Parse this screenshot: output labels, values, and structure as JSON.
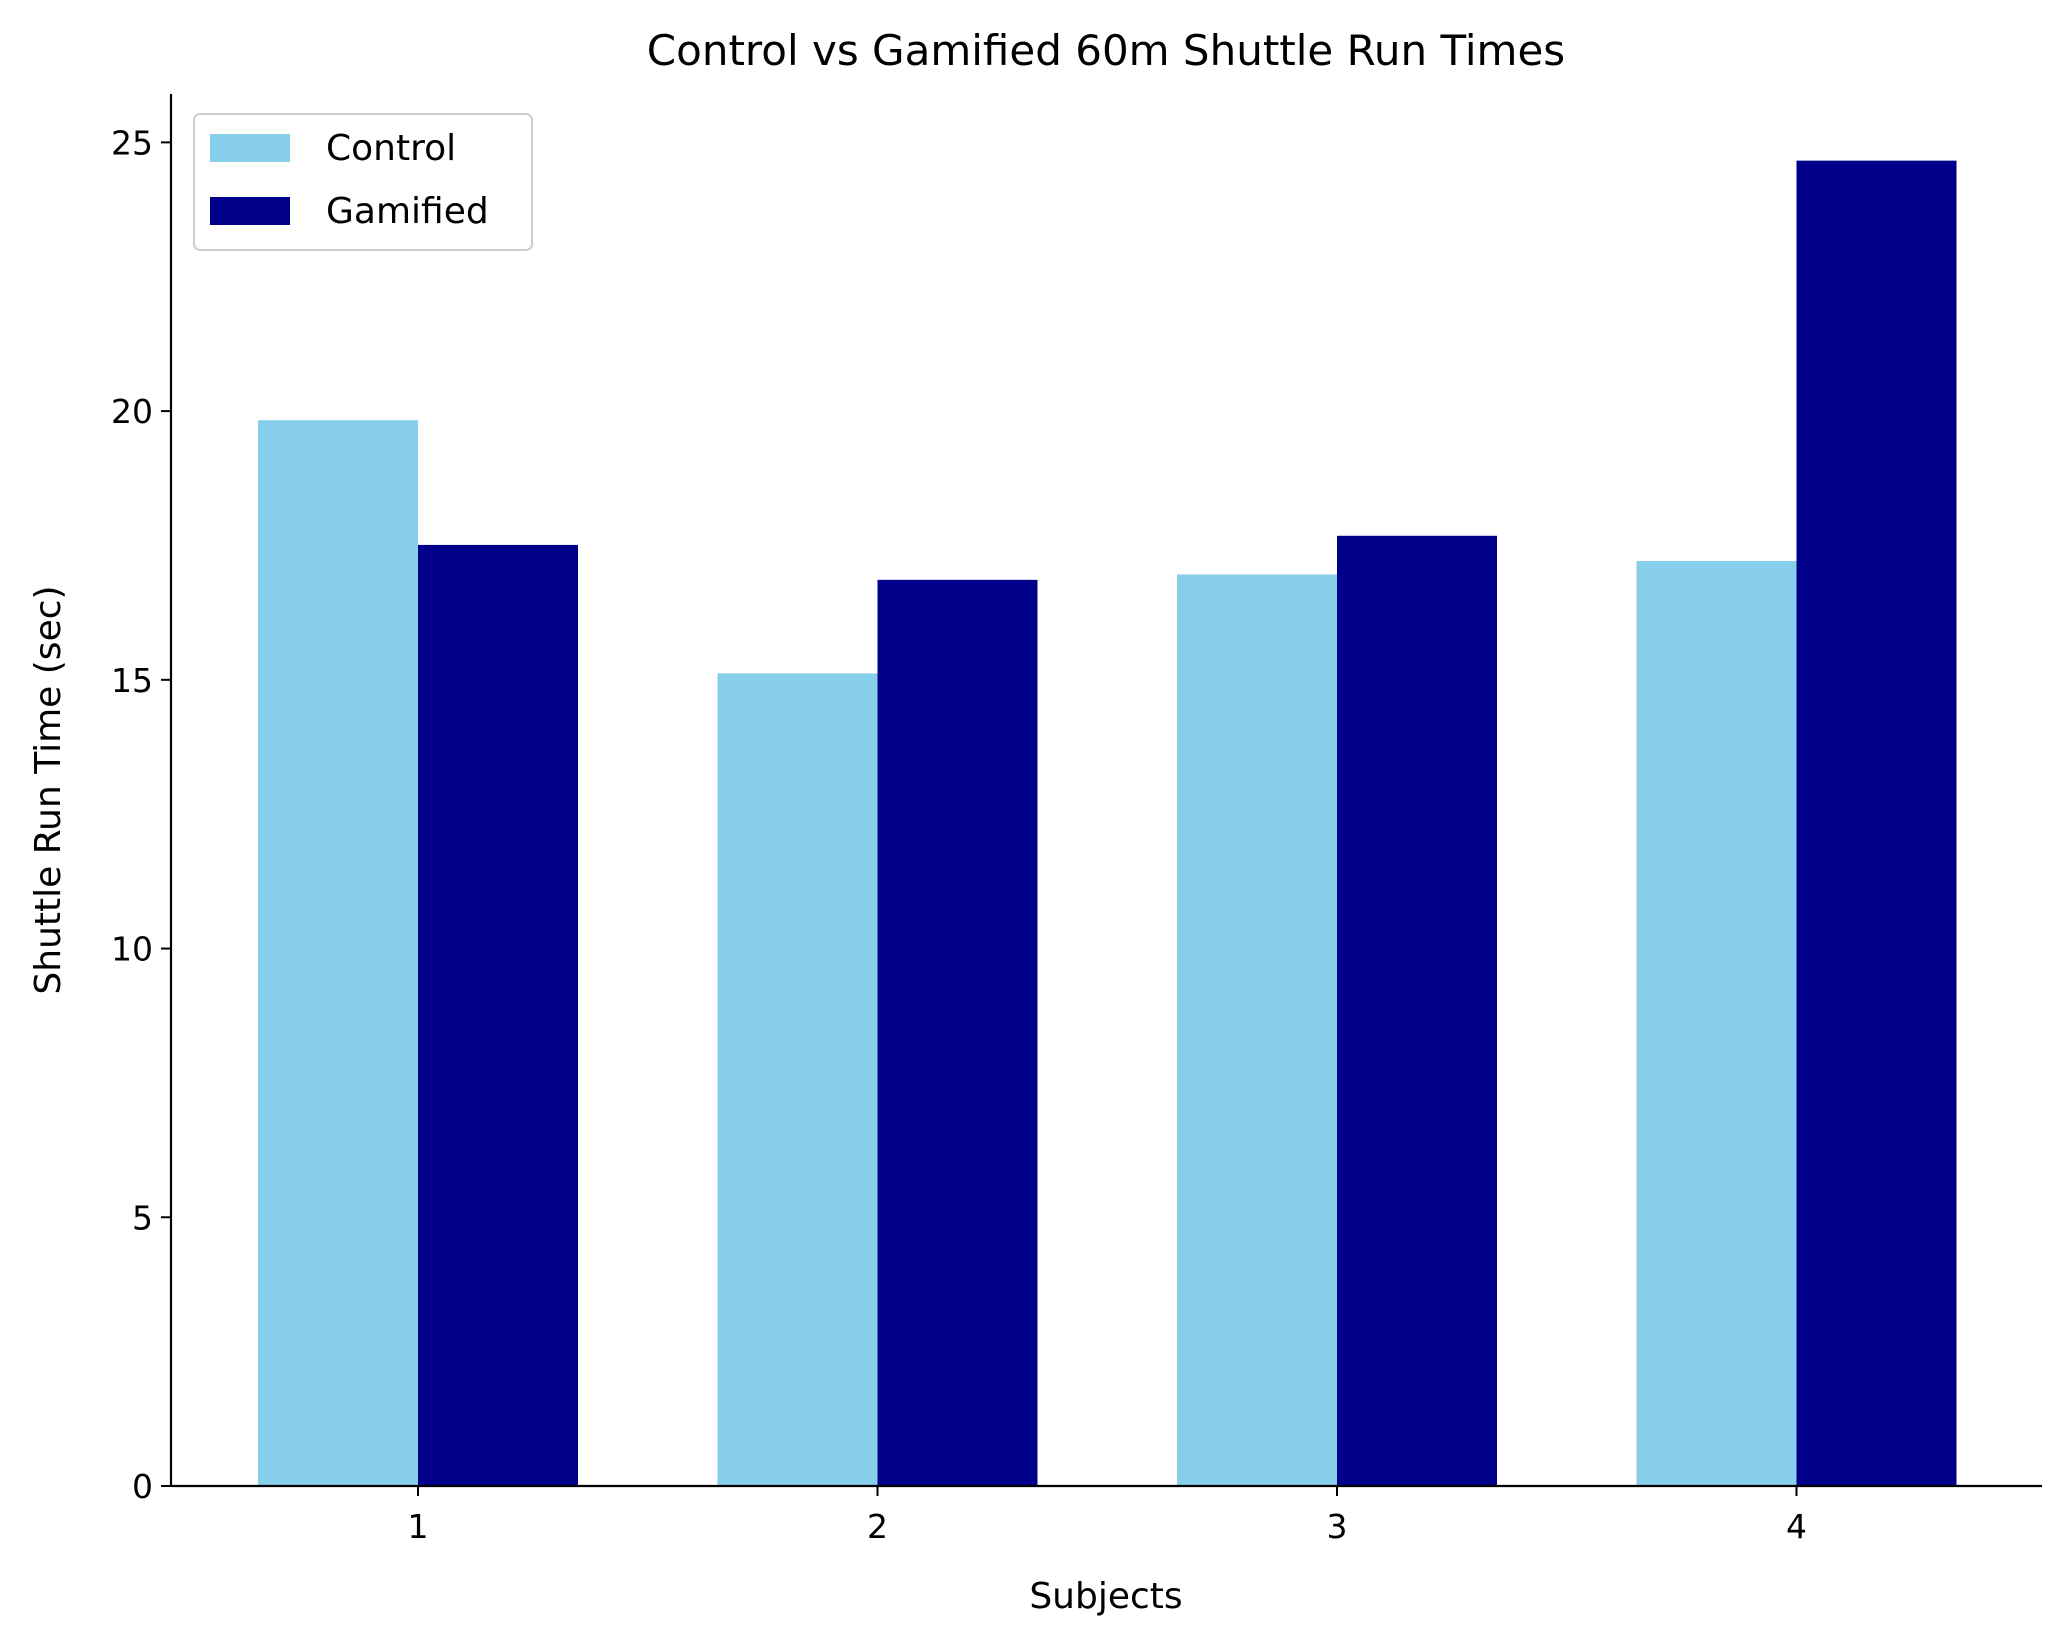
{
  "chart_data": {
    "type": "bar",
    "title": "Control vs Gamified 60m Shuttle Run Times",
    "xlabel": "Subjects",
    "ylabel": "Shuttle Run Time (sec)",
    "categories": [
      "1",
      "2",
      "3",
      "4"
    ],
    "series": [
      {
        "name": "Control",
        "color": "#87ceeb",
        "values": [
          19.83,
          15.12,
          16.96,
          17.21
        ]
      },
      {
        "name": "Gamified",
        "color": "#00008b",
        "values": [
          17.51,
          16.86,
          17.68,
          24.66
        ]
      }
    ],
    "ylim": [
      0,
      25.9
    ],
    "yticks": [
      0,
      5,
      10,
      15,
      20,
      25
    ],
    "grid": false,
    "legend_position": "top-left"
  }
}
